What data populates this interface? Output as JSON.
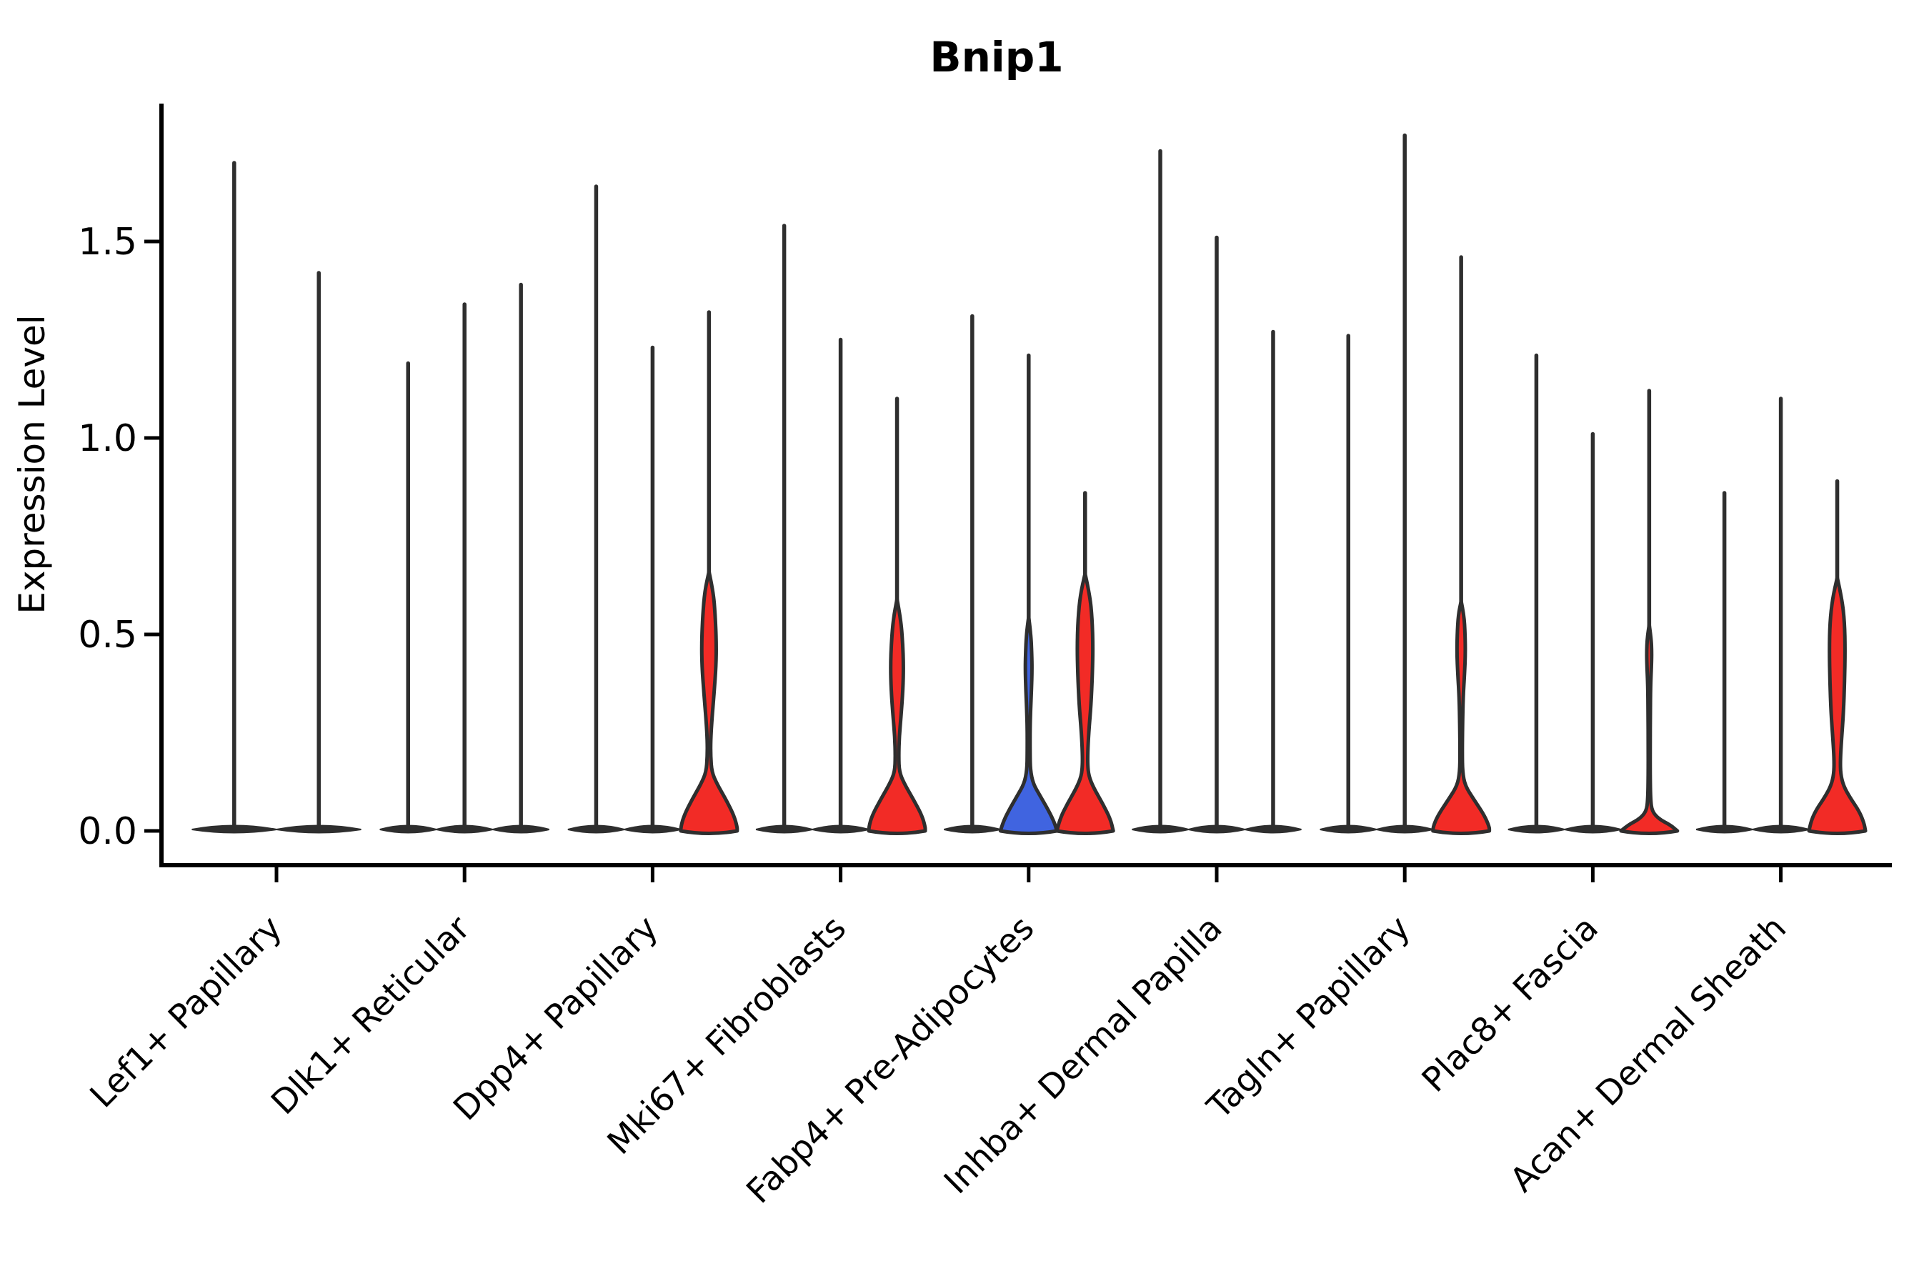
{
  "chart_data": {
    "type": "violin",
    "title": "Bnip1",
    "ylabel": "Expression Level",
    "xlabel": "",
    "yticks": [
      "0.0",
      "0.5",
      "1.0",
      "1.5"
    ],
    "ytick_values": [
      0.0,
      0.5,
      1.0,
      1.5
    ],
    "ylim": [
      0.0,
      1.85
    ],
    "grid": "off",
    "legend": "none",
    "colors": {
      "red": "#F22B26",
      "blue": "#4064E0",
      "plain": "solid-dark",
      "outline": "#2E2E2E"
    },
    "categories": [
      "Lef1+ Papillary",
      "Dlk1+ Reticular",
      "Dpp4+ Papillary",
      "Mki67+ Fibroblasts",
      "Fabp4+ Pre-Adipocytes",
      "Inhba+ Dermal Papilla",
      "Tagln+ Papillary",
      "Plac8+ Fascia",
      "Acan+ Dermal Sheath"
    ],
    "groups": [
      {
        "category": "Lef1+ Papillary",
        "violins": [
          {
            "max": 1.7,
            "fill": "plain"
          },
          {
            "max": 1.42,
            "fill": "plain"
          }
        ]
      },
      {
        "category": "Dlk1+ Reticular",
        "violins": [
          {
            "max": 1.19,
            "fill": "plain"
          },
          {
            "max": 1.34,
            "fill": "plain"
          },
          {
            "max": 1.39,
            "fill": "plain"
          }
        ]
      },
      {
        "category": "Dpp4+ Papillary",
        "violins": [
          {
            "max": 1.64,
            "fill": "plain"
          },
          {
            "max": 1.23,
            "fill": "plain"
          },
          {
            "max": 1.32,
            "fill": "red",
            "profile": [
              [
                0.66,
                0
              ],
              [
                0.61,
                0.15
              ],
              [
                0.55,
                0.22
              ],
              [
                0.48,
                0.26
              ],
              [
                0.42,
                0.25
              ],
              [
                0.35,
                0.18
              ],
              [
                0.28,
                0.1
              ],
              [
                0.23,
                0.06
              ],
              [
                0.19,
                0.06
              ],
              [
                0.15,
                0.1
              ],
              [
                0.12,
                0.28
              ],
              [
                0.08,
                0.6
              ],
              [
                0.04,
                0.88
              ],
              [
                0.01,
                1.0
              ],
              [
                0,
                1.0
              ]
            ]
          }
        ]
      },
      {
        "category": "Mki67+ Fibroblasts",
        "violins": [
          {
            "max": 1.54,
            "fill": "plain"
          },
          {
            "max": 1.25,
            "fill": "plain"
          },
          {
            "max": 1.1,
            "fill": "red",
            "profile": [
              [
                0.59,
                0
              ],
              [
                0.54,
                0.13
              ],
              [
                0.48,
                0.2
              ],
              [
                0.42,
                0.23
              ],
              [
                0.36,
                0.21
              ],
              [
                0.29,
                0.14
              ],
              [
                0.24,
                0.08
              ],
              [
                0.19,
                0.06
              ],
              [
                0.15,
                0.08
              ],
              [
                0.12,
                0.26
              ],
              [
                0.08,
                0.58
              ],
              [
                0.04,
                0.88
              ],
              [
                0.01,
                1.0
              ],
              [
                0,
                1.0
              ]
            ]
          }
        ]
      },
      {
        "category": "Fabp4+ Pre-Adipocytes",
        "violins": [
          {
            "max": 1.31,
            "fill": "plain"
          },
          {
            "max": 1.21,
            "fill": "blue",
            "profile": [
              [
                0.545,
                0
              ],
              [
                0.5,
                0.08
              ],
              [
                0.45,
                0.11
              ],
              [
                0.41,
                0.12
              ],
              [
                0.36,
                0.1
              ],
              [
                0.31,
                0.07
              ],
              [
                0.26,
                0.05
              ],
              [
                0.2,
                0.05
              ],
              [
                0.155,
                0.06
              ],
              [
                0.12,
                0.16
              ],
              [
                0.09,
                0.4
              ],
              [
                0.05,
                0.72
              ],
              [
                0.02,
                0.92
              ],
              [
                0,
                1.0
              ]
            ]
          },
          {
            "max": 0.86,
            "fill": "red",
            "profile": [
              [
                0.655,
                0
              ],
              [
                0.6,
                0.17
              ],
              [
                0.54,
                0.25
              ],
              [
                0.47,
                0.28
              ],
              [
                0.4,
                0.26
              ],
              [
                0.32,
                0.21
              ],
              [
                0.26,
                0.14
              ],
              [
                0.21,
                0.1
              ],
              [
                0.17,
                0.09
              ],
              [
                0.14,
                0.13
              ],
              [
                0.11,
                0.3
              ],
              [
                0.07,
                0.62
              ],
              [
                0.03,
                0.9
              ],
              [
                0,
                1.0
              ]
            ]
          }
        ]
      },
      {
        "category": "Inhba+ Dermal Papilla",
        "violins": [
          {
            "max": 1.73,
            "fill": "plain"
          },
          {
            "max": 1.51,
            "fill": "plain"
          },
          {
            "max": 1.27,
            "fill": "plain"
          }
        ]
      },
      {
        "category": "Tagln+ Papillary",
        "violins": [
          {
            "max": 1.26,
            "fill": "plain"
          },
          {
            "max": 1.77,
            "fill": "plain"
          },
          {
            "max": 1.46,
            "fill": "red",
            "profile": [
              [
                0.585,
                0
              ],
              [
                0.55,
                0.1
              ],
              [
                0.5,
                0.14
              ],
              [
                0.45,
                0.15
              ],
              [
                0.4,
                0.12
              ],
              [
                0.34,
                0.07
              ],
              [
                0.27,
                0.05
              ],
              [
                0.2,
                0.04
              ],
              [
                0.15,
                0.05
              ],
              [
                0.115,
                0.14
              ],
              [
                0.08,
                0.45
              ],
              [
                0.04,
                0.82
              ],
              [
                0.01,
                1.0
              ],
              [
                0,
                1.0
              ]
            ]
          }
        ]
      },
      {
        "category": "Plac8+ Fascia",
        "violins": [
          {
            "max": 1.21,
            "fill": "plain"
          },
          {
            "max": 1.01,
            "fill": "plain"
          },
          {
            "max": 1.12,
            "fill": "red",
            "profile": [
              [
                0.525,
                0
              ],
              [
                0.49,
                0.07
              ],
              [
                0.455,
                0.09
              ],
              [
                0.42,
                0.08
              ],
              [
                0.37,
                0.05
              ],
              [
                0.3,
                0.04
              ],
              [
                0.22,
                0.035
              ],
              [
                0.14,
                0.035
              ],
              [
                0.08,
                0.05
              ],
              [
                0.05,
                0.1
              ],
              [
                0.03,
                0.35
              ],
              [
                0.015,
                0.75
              ],
              [
                0,
                1.0
              ]
            ]
          }
        ]
      },
      {
        "category": "Acan+ Dermal Sheath",
        "violins": [
          {
            "max": 0.86,
            "fill": "plain"
          },
          {
            "max": 1.1,
            "fill": "plain"
          },
          {
            "max": 0.89,
            "fill": "red",
            "profile": [
              [
                0.645,
                0
              ],
              [
                0.59,
                0.17
              ],
              [
                0.53,
                0.26
              ],
              [
                0.46,
                0.28
              ],
              [
                0.38,
                0.26
              ],
              [
                0.3,
                0.22
              ],
              [
                0.23,
                0.15
              ],
              [
                0.18,
                0.11
              ],
              [
                0.145,
                0.12
              ],
              [
                0.115,
                0.22
              ],
              [
                0.085,
                0.45
              ],
              [
                0.05,
                0.78
              ],
              [
                0.02,
                0.95
              ],
              [
                0,
                1.0
              ]
            ]
          }
        ]
      }
    ]
  }
}
